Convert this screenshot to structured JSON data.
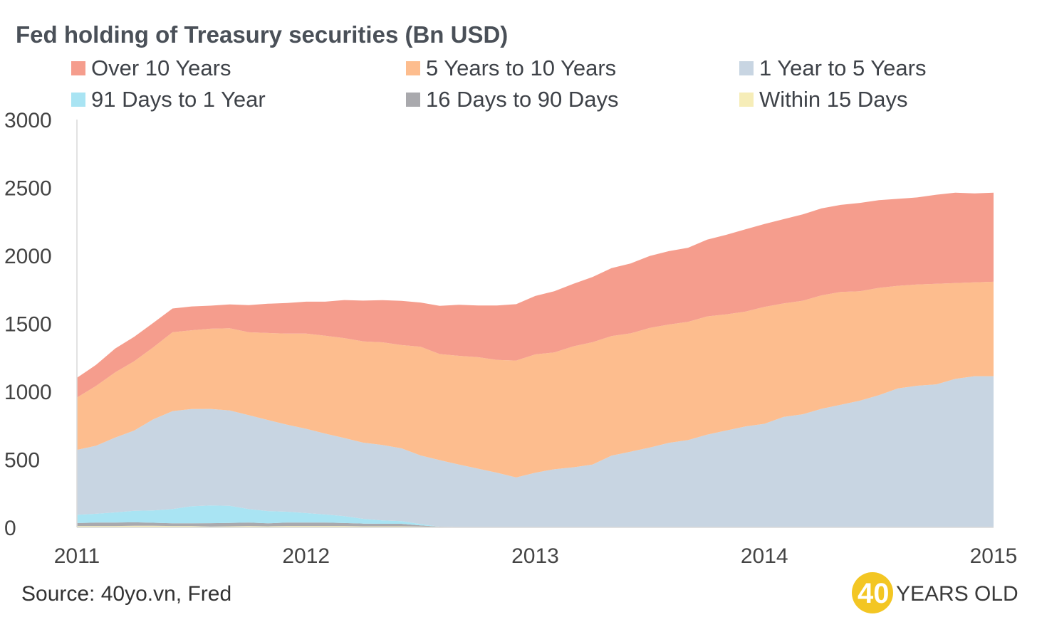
{
  "chart_data": {
    "type": "area",
    "stacked": true,
    "title": "Fed holding of Treasury securities (Bn USD)",
    "xlabel": "",
    "ylabel": "",
    "x_ticks": [
      "2011",
      "2012",
      "2013",
      "2014",
      "2015"
    ],
    "x_range": [
      2011,
      2015
    ],
    "y_ticks": [
      "0",
      "500",
      "1000",
      "1500",
      "2000",
      "2500",
      "3000"
    ],
    "ylim": [
      0,
      3000
    ],
    "legend_position": "top",
    "x": [
      2011.0,
      2011.083,
      2011.167,
      2011.25,
      2011.333,
      2011.417,
      2011.5,
      2011.583,
      2011.667,
      2011.75,
      2011.833,
      2011.917,
      2012.0,
      2012.083,
      2012.167,
      2012.25,
      2012.333,
      2012.417,
      2012.5,
      2012.583,
      2012.667,
      2012.75,
      2012.833,
      2012.917,
      2013.0,
      2013.083,
      2013.167,
      2013.25,
      2013.333,
      2013.417,
      2013.5,
      2013.583,
      2013.667,
      2013.75,
      2013.833,
      2013.917,
      2014.0,
      2014.083,
      2014.167,
      2014.25,
      2014.333,
      2014.417,
      2014.5,
      2014.583,
      2014.667,
      2014.75,
      2014.833,
      2014.917,
      2015.0
    ],
    "series": [
      {
        "name": "Within 15 Days",
        "color": "#f6edb8",
        "values": [
          10,
          10,
          10,
          12,
          12,
          10,
          10,
          6,
          8,
          10,
          8,
          10,
          10,
          10,
          10,
          8,
          8,
          8,
          6,
          3,
          2,
          2,
          2,
          2,
          2,
          2,
          2,
          2,
          2,
          2,
          2,
          2,
          2,
          2,
          2,
          2,
          2,
          2,
          2,
          2,
          2,
          2,
          2,
          2,
          2,
          2,
          2,
          2,
          2
        ]
      },
      {
        "name": "16 Days to 90 Days",
        "color": "#a9a9ad",
        "values": [
          22,
          25,
          25,
          25,
          22,
          20,
          20,
          25,
          25,
          25,
          22,
          25,
          25,
          25,
          22,
          20,
          18,
          18,
          8,
          2,
          0,
          0,
          0,
          0,
          0,
          0,
          0,
          0,
          0,
          0,
          0,
          0,
          0,
          0,
          0,
          0,
          0,
          0,
          0,
          0,
          0,
          0,
          0,
          0,
          0,
          0,
          0,
          0,
          0
        ]
      },
      {
        "name": "91 Days to 1 Year",
        "color": "#a9e4f3",
        "values": [
          60,
          65,
          75,
          85,
          90,
          105,
          125,
          130,
          125,
          100,
          90,
          80,
          70,
          60,
          50,
          35,
          25,
          20,
          10,
          0,
          0,
          0,
          0,
          0,
          0,
          0,
          0,
          0,
          0,
          0,
          0,
          0,
          0,
          0,
          0,
          0,
          0,
          0,
          0,
          0,
          0,
          0,
          0,
          0,
          0,
          0,
          0,
          0,
          0
        ]
      },
      {
        "name": "1 Year to 5 Years",
        "color": "#c8d5e2",
        "values": [
          478,
          500,
          550,
          590,
          670,
          720,
          715,
          710,
          702,
          690,
          670,
          640,
          620,
          595,
          575,
          560,
          555,
          535,
          505,
          490,
          460,
          430,
          400,
          365,
          400,
          425,
          440,
          460,
          525,
          555,
          585,
          620,
          640,
          680,
          710,
          740,
          760,
          810,
          830,
          870,
          900,
          930,
          970,
          1020,
          1040,
          1050,
          1090,
          1110,
          1110
        ]
      },
      {
        "name": "5 Years to 10 Years",
        "color": "#fdbd8e",
        "values": [
          385,
          440,
          480,
          510,
          530,
          580,
          580,
          590,
          605,
          610,
          640,
          670,
          700,
          720,
          735,
          745,
          755,
          760,
          800,
          780,
          800,
          820,
          830,
          860,
          870,
          860,
          890,
          900,
          880,
          870,
          880,
          870,
          870,
          870,
          855,
          845,
          860,
          835,
          835,
          835,
          830,
          805,
          790,
          755,
          745,
          740,
          705,
          690,
          695
        ]
      },
      {
        "name": "Over 10 Years",
        "color": "#f59d8d",
        "values": [
          145,
          155,
          175,
          180,
          180,
          175,
          175,
          170,
          175,
          200,
          215,
          225,
          235,
          250,
          280,
          300,
          310,
          325,
          325,
          355,
          375,
          380,
          400,
          415,
          430,
          450,
          460,
          480,
          500,
          515,
          530,
          540,
          545,
          565,
          585,
          605,
          610,
          620,
          635,
          640,
          640,
          650,
          645,
          640,
          640,
          655,
          665,
          655,
          655
        ]
      }
    ]
  },
  "footer": {
    "source": "Source: 40yo.vn, Fred",
    "logo_number": "40",
    "logo_text": "YEARS OLD"
  }
}
